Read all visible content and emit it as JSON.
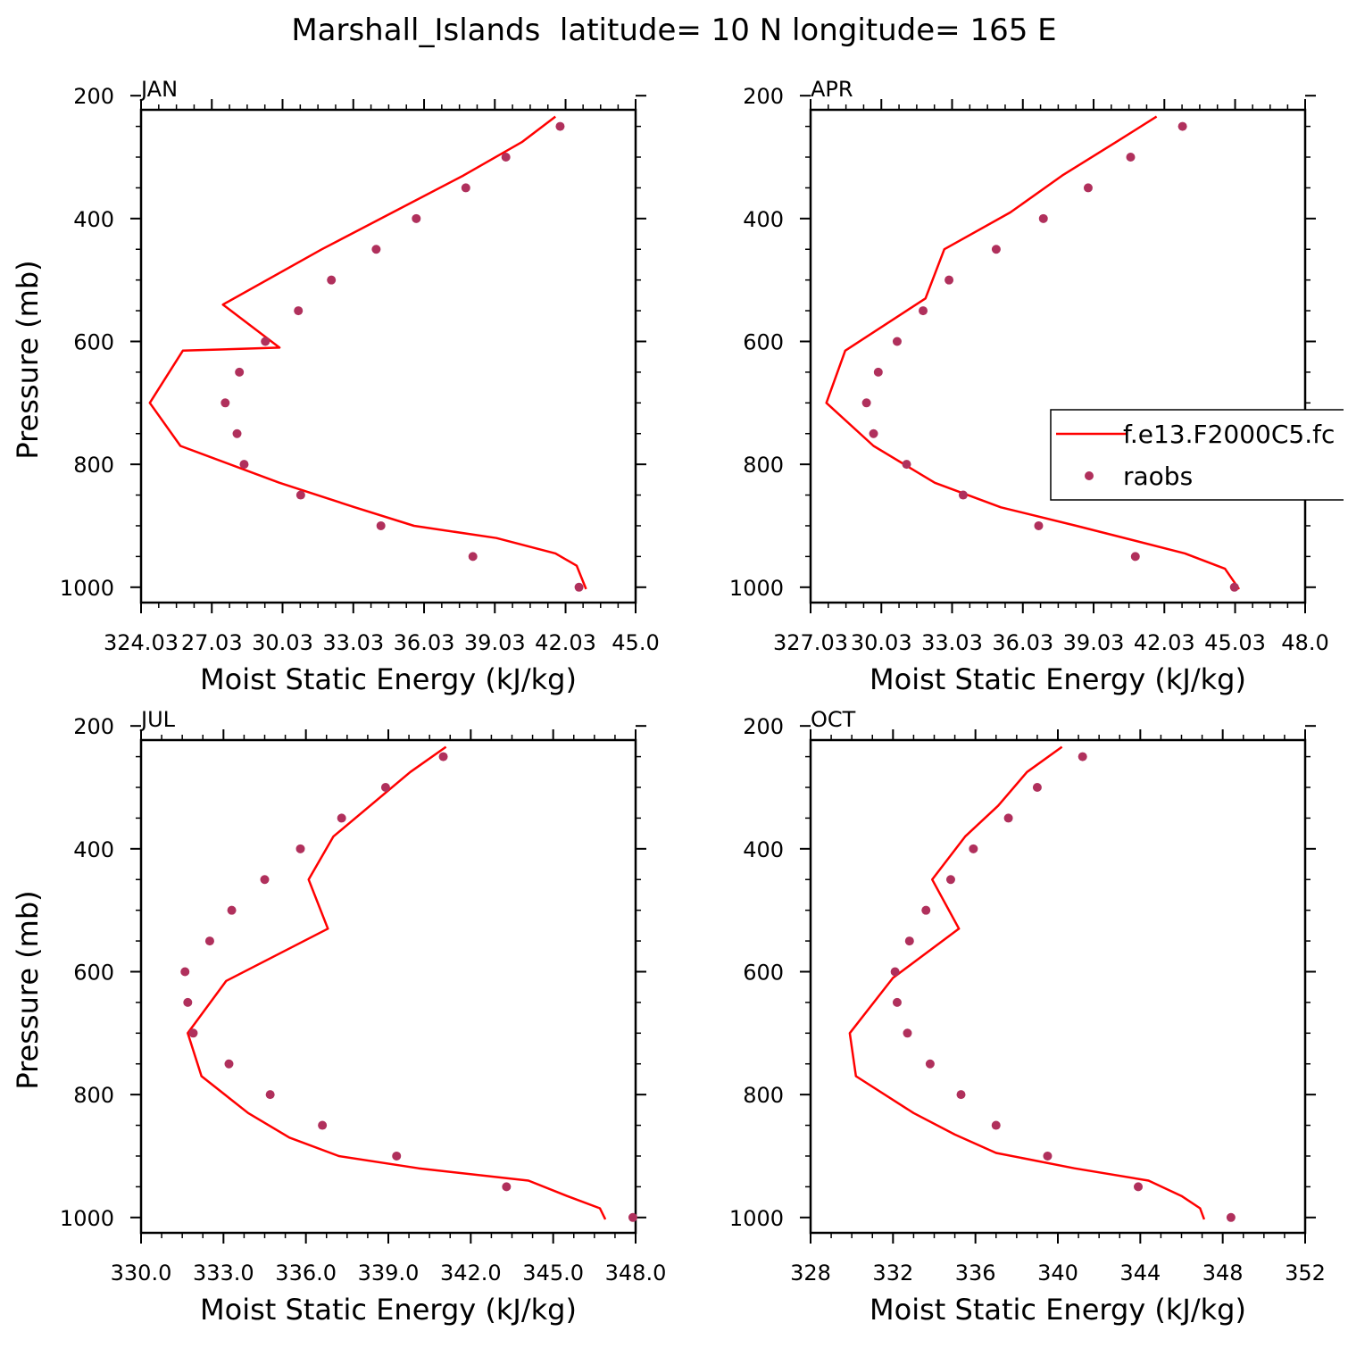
{
  "figure": {
    "title": "Marshall_Islands  latitude= 10 N longitude= 165 E"
  },
  "colors": {
    "model_line": "#ff0000",
    "obs_marker": "#b0305c",
    "axis": "#000000"
  },
  "legend": {
    "entries": [
      "f.e13.F2000C5.fc",
      "raobs"
    ]
  },
  "chart_data": [
    {
      "type": "line",
      "panel_label": "JAN",
      "xlabel": "Moist Static Energy (kJ/kg)",
      "ylabel": "Pressure (mb)",
      "xlim": [
        324.03,
        345.0
      ],
      "ylim": [
        1000,
        200
      ],
      "xticks": [
        "324.03",
        "27.03",
        "30.03",
        "33.03",
        "36.03",
        "39.03",
        "42.03",
        "45.0"
      ],
      "xtick_values": [
        324.03,
        327.03,
        330.03,
        333.03,
        336.03,
        339.03,
        342.03,
        345.0
      ],
      "yticks": [
        "200",
        "400",
        "600",
        "800",
        "1000"
      ],
      "series": [
        {
          "name": "f.e13.F2000C5.fc",
          "kind": "line",
          "x": [
            341.6,
            340.2,
            337.7,
            334.7,
            331.7,
            327.5,
            329.9,
            325.8,
            324.4,
            325.7,
            329.9,
            333.1,
            335.6,
            339.1,
            341.6,
            342.5,
            342.9
          ],
          "y": [
            234,
            275,
            330,
            390,
            450,
            540,
            610,
            615,
            700,
            770,
            830,
            870,
            900,
            920,
            945,
            965,
            1003
          ]
        },
        {
          "name": "raobs",
          "kind": "scatter",
          "x": [
            341.8,
            339.5,
            337.8,
            335.7,
            334.0,
            332.1,
            330.7,
            329.3,
            328.2,
            327.6,
            328.1,
            328.4,
            330.8,
            334.2,
            338.1,
            342.6
          ],
          "y": [
            250,
            300,
            350,
            400,
            450,
            500,
            550,
            600,
            650,
            700,
            750,
            800,
            850,
            900,
            950,
            1000
          ]
        }
      ]
    },
    {
      "type": "line",
      "panel_label": "APR",
      "xlabel": "Moist Static Energy (kJ/kg)",
      "ylabel": "",
      "xlim": [
        327.03,
        348.0
      ],
      "ylim": [
        1000,
        200
      ],
      "xticks": [
        "327.03",
        "30.03",
        "33.03",
        "36.03",
        "39.03",
        "42.03",
        "45.03",
        "48.0"
      ],
      "xtick_values": [
        327.03,
        330.03,
        333.03,
        336.03,
        339.03,
        342.03,
        345.03,
        348.0
      ],
      "yticks": [
        "200",
        "400",
        "600",
        "800",
        "1000"
      ],
      "series": [
        {
          "name": "f.e13.F2000C5.fc",
          "kind": "line",
          "x": [
            341.7,
            340.0,
            337.7,
            335.5,
            332.7,
            331.9,
            328.5,
            327.7,
            329.7,
            332.3,
            335.1,
            338.3,
            342.9,
            344.6,
            345.2
          ],
          "y": [
            234,
            275,
            330,
            390,
            450,
            530,
            615,
            700,
            770,
            830,
            870,
            900,
            945,
            970,
            1003
          ]
        },
        {
          "name": "raobs",
          "kind": "scatter",
          "x": [
            342.8,
            340.6,
            338.8,
            336.9,
            334.9,
            332.9,
            331.8,
            330.7,
            329.9,
            329.4,
            329.7,
            331.1,
            333.5,
            336.7,
            340.8,
            345.0
          ],
          "y": [
            250,
            300,
            350,
            400,
            450,
            500,
            550,
            600,
            650,
            700,
            750,
            800,
            850,
            900,
            950,
            1000
          ]
        }
      ]
    },
    {
      "type": "line",
      "panel_label": "JUL",
      "xlabel": "Moist Static Energy (kJ/kg)",
      "ylabel": "Pressure (mb)",
      "xlim": [
        330.0,
        348.0
      ],
      "ylim": [
        1000,
        200
      ],
      "xticks": [
        "330.0",
        "333.0",
        "336.0",
        "339.0",
        "342.0",
        "345.0",
        "348.0"
      ],
      "xtick_values": [
        330.0,
        333.0,
        336.0,
        339.0,
        342.0,
        345.0,
        348.0
      ],
      "yticks": [
        "200",
        "400",
        "600",
        "800",
        "1000"
      ],
      "series": [
        {
          "name": "f.e13.F2000C5.fc",
          "kind": "line",
          "x": [
            341.1,
            339.8,
            337.0,
            336.1,
            336.8,
            333.1,
            331.7,
            332.2,
            333.9,
            335.4,
            337.2,
            340.1,
            344.1,
            345.5,
            346.7,
            346.9
          ],
          "y": [
            234,
            275,
            380,
            450,
            530,
            615,
            700,
            770,
            830,
            870,
            900,
            920,
            940,
            965,
            985,
            1003
          ]
        },
        {
          "name": "raobs",
          "kind": "scatter",
          "x": [
            341.0,
            338.9,
            337.3,
            335.8,
            334.5,
            333.3,
            332.5,
            331.6,
            331.7,
            331.9,
            333.2,
            334.7,
            336.6,
            339.3,
            343.3,
            347.9
          ],
          "y": [
            250,
            300,
            350,
            400,
            450,
            500,
            550,
            600,
            650,
            700,
            750,
            800,
            850,
            900,
            950,
            1000
          ]
        }
      ]
    },
    {
      "type": "line",
      "panel_label": "OCT",
      "xlabel": "Moist Static Energy (kJ/kg)",
      "ylabel": "",
      "xlim": [
        328,
        352
      ],
      "ylim": [
        1000,
        200
      ],
      "xticks": [
        "328",
        "332",
        "336",
        "340",
        "344",
        "348",
        "352"
      ],
      "xtick_values": [
        328,
        332,
        336,
        340,
        344,
        348,
        352
      ],
      "yticks": [
        "200",
        "400",
        "600",
        "800",
        "1000"
      ],
      "series": [
        {
          "name": "f.e13.F2000C5.fc",
          "kind": "line",
          "x": [
            340.2,
            338.5,
            337.1,
            335.5,
            333.9,
            335.2,
            332.0,
            329.9,
            330.2,
            333.0,
            335.0,
            337.0,
            340.8,
            344.4,
            346.0,
            346.9,
            347.1
          ],
          "y": [
            234,
            275,
            330,
            380,
            450,
            530,
            610,
            700,
            770,
            830,
            865,
            895,
            920,
            940,
            965,
            985,
            1003
          ]
        },
        {
          "name": "raobs",
          "kind": "scatter",
          "x": [
            341.2,
            339.0,
            337.6,
            335.9,
            334.8,
            333.6,
            332.8,
            332.1,
            332.2,
            332.7,
            333.8,
            335.3,
            337.0,
            339.5,
            343.9,
            348.4
          ],
          "y": [
            250,
            300,
            350,
            400,
            450,
            500,
            550,
            600,
            650,
            700,
            750,
            800,
            850,
            900,
            950,
            1000
          ]
        }
      ]
    }
  ]
}
